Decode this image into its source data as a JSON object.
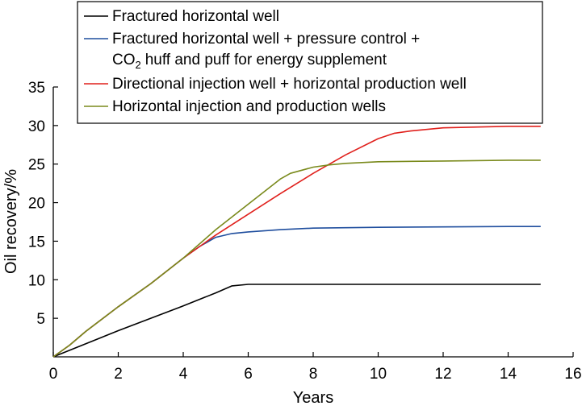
{
  "chart_data": {
    "type": "line",
    "xlabel": "Years",
    "ylabel": "Oil recovery/%",
    "xlim": [
      0,
      16
    ],
    "ylim": [
      0,
      35
    ],
    "x_ticks": [
      "0",
      "2",
      "4",
      "6",
      "8",
      "10",
      "12",
      "14",
      "16"
    ],
    "y_ticks": [
      "5",
      "10",
      "15",
      "20",
      "25",
      "30",
      "35"
    ],
    "grid": false,
    "legend_position": "top-left",
    "series": [
      {
        "name": "Fractured horizontal well",
        "color": "#000000",
        "x": [
          0,
          1,
          2,
          3,
          4,
          5,
          5.5,
          6,
          7,
          8,
          10,
          12,
          14,
          15
        ],
        "y": [
          0,
          1.7,
          3.4,
          5,
          6.6,
          8.3,
          9.2,
          9.4,
          9.4,
          9.4,
          9.4,
          9.4,
          9.4,
          9.4
        ]
      },
      {
        "name": "Fractured horizontal well + pressure control + CO₂ huff and puff for energy supplement",
        "legend_lines": [
          "Fractured horizontal well + pressure control +",
          "huff and puff for energy supplement"
        ],
        "legend_prefix": "CO",
        "legend_subscript": "2",
        "color": "#1f4e9e",
        "x": [
          0,
          0.5,
          1,
          2,
          3,
          4,
          4.5,
          5,
          5.5,
          6,
          7,
          8,
          10,
          12,
          14,
          15
        ],
        "y": [
          0,
          1.5,
          3.3,
          6.5,
          9.5,
          12.8,
          14.3,
          15.5,
          16.0,
          16.2,
          16.5,
          16.7,
          16.8,
          16.85,
          16.9,
          16.9
        ]
      },
      {
        "name": "Directional injection well + horizontal production well",
        "color": "#e0201c",
        "x": [
          0,
          0.5,
          1,
          2,
          3,
          4,
          5,
          6,
          7,
          8,
          9,
          10,
          10.5,
          11,
          12,
          14,
          15
        ],
        "y": [
          0,
          1.5,
          3.3,
          6.5,
          9.5,
          12.8,
          15.8,
          18.5,
          21.2,
          23.8,
          26.2,
          28.3,
          29.0,
          29.3,
          29.7,
          29.9,
          29.9
        ]
      },
      {
        "name": "Horizontal injection and production wells",
        "color": "#7a8a1c",
        "x": [
          0,
          0.5,
          1,
          2,
          3,
          4,
          5,
          6,
          7,
          7.3,
          8,
          8.5,
          9,
          10,
          12,
          14,
          15
        ],
        "y": [
          0,
          1.5,
          3.3,
          6.5,
          9.5,
          12.8,
          16.5,
          19.8,
          23.1,
          23.8,
          24.6,
          24.9,
          25.1,
          25.3,
          25.4,
          25.5,
          25.5
        ]
      }
    ]
  }
}
